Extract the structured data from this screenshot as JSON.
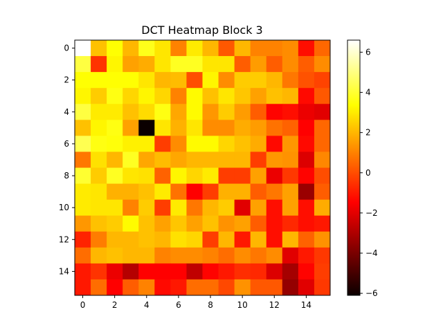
{
  "chart_data": {
    "type": "heatmap",
    "title": "DCT Heatmap Block 3",
    "colormap": "hot",
    "vmin": -6.1,
    "vmax": 6.6,
    "rows": 16,
    "cols": 16,
    "x_ticks": [
      0,
      2,
      4,
      6,
      8,
      10,
      12,
      14
    ],
    "y_ticks": [
      0,
      2,
      4,
      6,
      8,
      10,
      12,
      14
    ],
    "colorbar_ticks": [
      -6,
      -4,
      -2,
      0,
      2,
      4,
      6
    ],
    "values": [
      [
        6.6,
        2.2,
        3.4,
        2.0,
        3.7,
        2.9,
        1.0,
        3.0,
        2.0,
        0.2,
        2.0,
        1.0,
        1.0,
        1.2,
        -1.2,
        0.5
      ],
      [
        4.2,
        -0.5,
        3.2,
        1.6,
        1.8,
        2.9,
        3.8,
        3.8,
        2.9,
        2.9,
        0.3,
        1.5,
        0.3,
        1.2,
        0.3,
        1.2
      ],
      [
        3.4,
        3.4,
        3.4,
        3.4,
        2.9,
        2.0,
        2.1,
        0.0,
        3.2,
        1.2,
        2.4,
        2.4,
        2.0,
        0.8,
        0.1,
        -0.2
      ],
      [
        3.2,
        2.4,
        3.6,
        2.6,
        3.2,
        2.6,
        1.0,
        3.3,
        2.2,
        2.9,
        2.3,
        1.6,
        2.2,
        2.0,
        -1.3,
        0.2
      ],
      [
        4.2,
        3.0,
        3.0,
        2.2,
        2.7,
        3.6,
        1.7,
        3.3,
        1.4,
        2.4,
        1.5,
        0.3,
        -1.4,
        -1.2,
        -2.0,
        -2.2
      ],
      [
        2.2,
        3.2,
        3.6,
        1.6,
        -6.1,
        2.9,
        1.9,
        2.9,
        1.2,
        1.2,
        1.8,
        1.5,
        0.7,
        0.4,
        -1.5,
        0.5
      ],
      [
        4.4,
        3.6,
        3.5,
        3.1,
        3.1,
        -0.3,
        1.2,
        3.3,
        3.3,
        2.6,
        2.2,
        1.8,
        -1.3,
        1.4,
        -1.3,
        0.5
      ],
      [
        0.8,
        2.8,
        2.0,
        3.8,
        1.7,
        2.1,
        1.7,
        2.0,
        2.0,
        2.0,
        2.0,
        -0.3,
        1.4,
        1.3,
        -2.3,
        1.1
      ],
      [
        4.0,
        2.4,
        3.8,
        2.9,
        2.8,
        0.4,
        3.2,
        2.6,
        3.0,
        -0.3,
        -0.3,
        1.6,
        -2.0,
        -0.4,
        -1.4,
        0.0
      ],
      [
        3.0,
        2.9,
        1.9,
        1.9,
        2.2,
        3.0,
        0.7,
        -1.6,
        -0.3,
        1.9,
        1.9,
        0.3,
        0.8,
        1.6,
        -3.5,
        0.3
      ],
      [
        3.0,
        2.9,
        2.9,
        1.0,
        2.4,
        -0.3,
        3.0,
        0.8,
        2.0,
        2.4,
        -2.2,
        1.6,
        -1.2,
        1.6,
        -1.2,
        1.8
      ],
      [
        1.4,
        2.2,
        2.4,
        3.3,
        2.2,
        1.6,
        2.3,
        1.6,
        2.2,
        1.3,
        1.6,
        0.3,
        -1.2,
        -0.7,
        -1.2,
        -1.0
      ],
      [
        -0.8,
        0.9,
        2.0,
        2.0,
        2.2,
        2.0,
        2.8,
        2.6,
        -0.3,
        2.0,
        -1.0,
        2.0,
        -1.2,
        2.0,
        0.4,
        1.3
      ],
      [
        0.6,
        2.0,
        2.2,
        2.0,
        2.0,
        1.0,
        1.2,
        1.2,
        1.0,
        0.6,
        1.2,
        0.8,
        1.2,
        -2.2,
        -1.0,
        -0.4
      ],
      [
        -1.0,
        -0.5,
        -2.0,
        -3.0,
        -1.5,
        -1.5,
        -1.5,
        -2.8,
        -1.4,
        -1.0,
        -0.6,
        -0.7,
        -2.3,
        -3.3,
        -1.4,
        -0.3
      ],
      [
        -1.0,
        0.6,
        -1.5,
        0.3,
        1.0,
        -1.3,
        -1.0,
        0.6,
        0.6,
        -0.1,
        1.3,
        0.2,
        0.2,
        -3.6,
        -2.2,
        -0.4
      ]
    ]
  }
}
